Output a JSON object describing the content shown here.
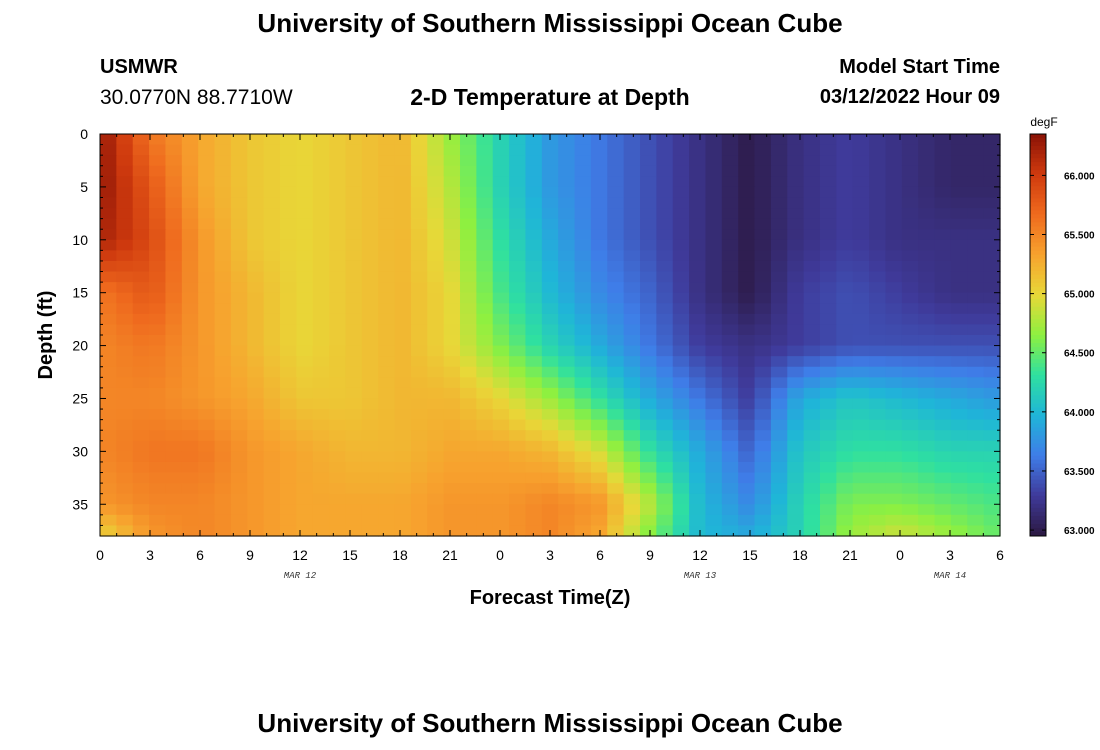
{
  "page": {
    "title_top": "University of Southern Mississippi Ocean Cube",
    "title_bottom": "University of Southern Mississippi Ocean Cube",
    "station_id": "USMWR",
    "station_coords": "30.0770N  88.7710W",
    "subtitle": "2-D Temperature at Depth",
    "start_label": "Model Start Time",
    "start_value": "03/12/2022 Hour 09"
  },
  "colors": {
    "background": "#ffffff",
    "axis": "#000000"
  },
  "chart_data": {
    "type": "heatmap",
    "title": "2-D Temperature at Depth",
    "xlabel": "Forecast Time(Z)",
    "ylabel": "Depth (ft)",
    "x_tick_labels": [
      "0",
      "3",
      "6",
      "9",
      "12",
      "15",
      "18",
      "21",
      "0",
      "3",
      "6",
      "9",
      "12",
      "15",
      "18",
      "21",
      "0",
      "3",
      "6"
    ],
    "x_range_hours": [
      0,
      54
    ],
    "date_labels": [
      {
        "text": "MAR 12",
        "hour": 12
      },
      {
        "text": "MAR 13",
        "hour": 36
      },
      {
        "text": "MAR 14",
        "hour": 51
      }
    ],
    "y_ticks": [
      0,
      5,
      10,
      15,
      20,
      25,
      30,
      35
    ],
    "y_range": [
      0,
      38
    ],
    "y_inverted": true,
    "colorbar": {
      "unit": "degF",
      "min": 62.95,
      "max": 66.35,
      "tick_values": [
        63.0,
        63.5,
        64.0,
        64.5,
        65.0,
        65.5,
        66.0
      ],
      "tick_labels": [
        "63.000",
        "63.500",
        "64.000",
        "64.500",
        "65.000",
        "65.500",
        "66.000"
      ]
    },
    "colormap": [
      "#2b1840",
      "#3f3a9a",
      "#3f7de8",
      "#1fb5d8",
      "#2fe0a0",
      "#8ef040",
      "#e8d838",
      "#f7a22e",
      "#ef6a1e",
      "#cf3a0e",
      "#8a1206"
    ],
    "grid_columns": 55,
    "grid_rows": 38,
    "time_hours": [
      0,
      3,
      6,
      9,
      12,
      15,
      18,
      21,
      24,
      27,
      30,
      33,
      36,
      39,
      42,
      45,
      48,
      51,
      54
    ],
    "depths_ft": [
      0,
      5,
      10,
      15,
      20,
      25,
      30,
      35,
      38
    ],
    "temperature_degF": [
      [
        66.3,
        65.6,
        65.3,
        65.1,
        65.0,
        65.1,
        65.2,
        64.7,
        64.2,
        63.8,
        63.6,
        63.4,
        63.2,
        63.0,
        63.2,
        63.3,
        63.2,
        63.1,
        63.1
      ],
      [
        66.3,
        65.8,
        65.3,
        65.1,
        65.0,
        65.1,
        65.2,
        64.8,
        64.2,
        63.8,
        63.6,
        63.4,
        63.2,
        63.0,
        63.2,
        63.3,
        63.2,
        63.1,
        63.1
      ],
      [
        66.2,
        65.9,
        65.4,
        65.1,
        65.0,
        65.1,
        65.2,
        64.9,
        64.3,
        63.9,
        63.6,
        63.4,
        63.2,
        63.0,
        63.2,
        63.3,
        63.2,
        63.2,
        63.2
      ],
      [
        65.6,
        65.8,
        65.4,
        65.2,
        65.0,
        65.1,
        65.2,
        65.0,
        64.4,
        64.0,
        63.7,
        63.5,
        63.2,
        63.0,
        63.3,
        63.4,
        63.3,
        63.2,
        63.2
      ],
      [
        65.5,
        65.6,
        65.4,
        65.2,
        65.0,
        65.1,
        65.2,
        65.0,
        64.6,
        64.2,
        63.9,
        63.6,
        63.3,
        63.2,
        63.3,
        63.4,
        63.4,
        63.4,
        63.4
      ],
      [
        65.5,
        65.5,
        65.4,
        65.3,
        65.1,
        65.1,
        65.2,
        65.2,
        65.0,
        64.7,
        64.3,
        63.9,
        63.6,
        63.3,
        63.9,
        64.1,
        64.0,
        63.9,
        63.8
      ],
      [
        65.5,
        65.6,
        65.6,
        65.4,
        65.3,
        65.2,
        65.2,
        65.3,
        65.3,
        65.2,
        64.9,
        64.3,
        63.9,
        63.5,
        64.1,
        64.3,
        64.3,
        64.2,
        64.2
      ],
      [
        65.4,
        65.5,
        65.5,
        65.4,
        65.3,
        65.3,
        65.3,
        65.4,
        65.4,
        65.5,
        65.4,
        64.8,
        64.0,
        63.7,
        64.2,
        64.6,
        64.6,
        64.5,
        64.4
      ],
      [
        65.0,
        65.4,
        65.5,
        65.4,
        65.3,
        65.3,
        65.3,
        65.4,
        65.4,
        65.5,
        65.3,
        64.6,
        64.0,
        63.9,
        64.2,
        64.7,
        64.9,
        64.7,
        64.5
      ]
    ]
  }
}
